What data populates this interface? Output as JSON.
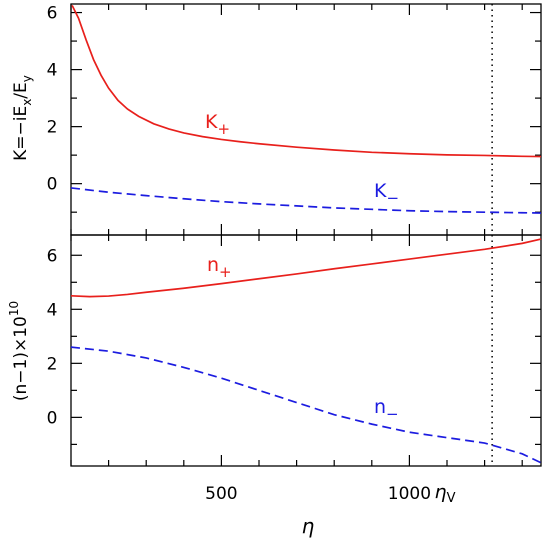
{
  "chart_data": [
    {
      "type": "line",
      "panel": "top",
      "xlabel": "η",
      "ylabel": "K=−iE_x/E_y",
      "xlim": [
        100,
        1350
      ],
      "ylim": [
        -1.8,
        6.3
      ],
      "yticks": [
        0,
        2,
        4,
        6
      ],
      "xticks": [
        500,
        1000
      ],
      "grid": false,
      "vline": {
        "x": 1220,
        "label": "η_V",
        "style": "dotted"
      },
      "series": [
        {
          "name": "K+",
          "color": "#e8201c",
          "style": "solid",
          "x": [
            103,
            120,
            140,
            160,
            180,
            200,
            225,
            250,
            280,
            320,
            360,
            400,
            450,
            500,
            550,
            600,
            700,
            800,
            900,
            1000,
            1100,
            1200,
            1300,
            1350
          ],
          "y": [
            6.25,
            5.8,
            5.05,
            4.35,
            3.8,
            3.35,
            2.92,
            2.62,
            2.36,
            2.1,
            1.92,
            1.78,
            1.65,
            1.55,
            1.47,
            1.4,
            1.28,
            1.18,
            1.1,
            1.05,
            1.01,
            0.99,
            0.96,
            0.95
          ]
        },
        {
          "name": "K−",
          "color": "#1c1ce0",
          "style": "dashed",
          "x": [
            100,
            200,
            300,
            400,
            500,
            600,
            700,
            800,
            900,
            1000,
            1100,
            1200,
            1300,
            1350
          ],
          "y": [
            -0.15,
            -0.3,
            -0.42,
            -0.53,
            -0.63,
            -0.71,
            -0.78,
            -0.85,
            -0.9,
            -0.95,
            -0.98,
            -1.0,
            -1.02,
            -1.03
          ]
        }
      ],
      "labels": [
        {
          "text_main": "K",
          "text_sub": "+",
          "series": "K+"
        },
        {
          "text_main": "K",
          "text_sub": "−",
          "series": "K−"
        }
      ]
    },
    {
      "type": "line",
      "panel": "bottom",
      "xlabel": "η",
      "ylabel": "(n−1)×10^10",
      "xlim": [
        100,
        1350
      ],
      "ylim": [
        -1.8,
        6.75
      ],
      "yticks": [
        0,
        2,
        4,
        6
      ],
      "xticks": [
        500,
        1000
      ],
      "grid": false,
      "vline": {
        "x": 1220,
        "label": "η_V",
        "style": "dotted"
      },
      "series": [
        {
          "name": "n+",
          "color": "#e8201c",
          "style": "solid",
          "x": [
            100,
            150,
            200,
            250,
            300,
            400,
            500,
            600,
            700,
            800,
            900,
            1000,
            1100,
            1200,
            1300,
            1350
          ],
          "y": [
            4.5,
            4.47,
            4.49,
            4.55,
            4.63,
            4.78,
            4.95,
            5.13,
            5.31,
            5.5,
            5.68,
            5.86,
            6.04,
            6.22,
            6.44,
            6.6
          ]
        },
        {
          "name": "n−",
          "color": "#1c1ce0",
          "style": "dashed",
          "x": [
            100,
            200,
            300,
            400,
            500,
            600,
            700,
            800,
            900,
            1000,
            1100,
            1200,
            1300,
            1350
          ],
          "y": [
            2.6,
            2.45,
            2.2,
            1.85,
            1.45,
            1.0,
            0.55,
            0.1,
            -0.25,
            -0.55,
            -0.75,
            -0.95,
            -1.35,
            -1.68
          ]
        }
      ],
      "labels": [
        {
          "text_main": "n",
          "text_sub": "+",
          "series": "n+"
        },
        {
          "text_main": "n",
          "text_sub": "−",
          "series": "n−"
        }
      ]
    }
  ],
  "text": {
    "xlabel": "η",
    "top_ylabel_main": "K=−iE",
    "top_ylabel_sub1": "x",
    "top_ylabel_mid": "/E",
    "top_ylabel_sub2": "y",
    "bottom_ylabel_main": "(n−1)×10",
    "bottom_ylabel_sup": "10",
    "vline_label_main": "η",
    "vline_label_sub": "V"
  }
}
